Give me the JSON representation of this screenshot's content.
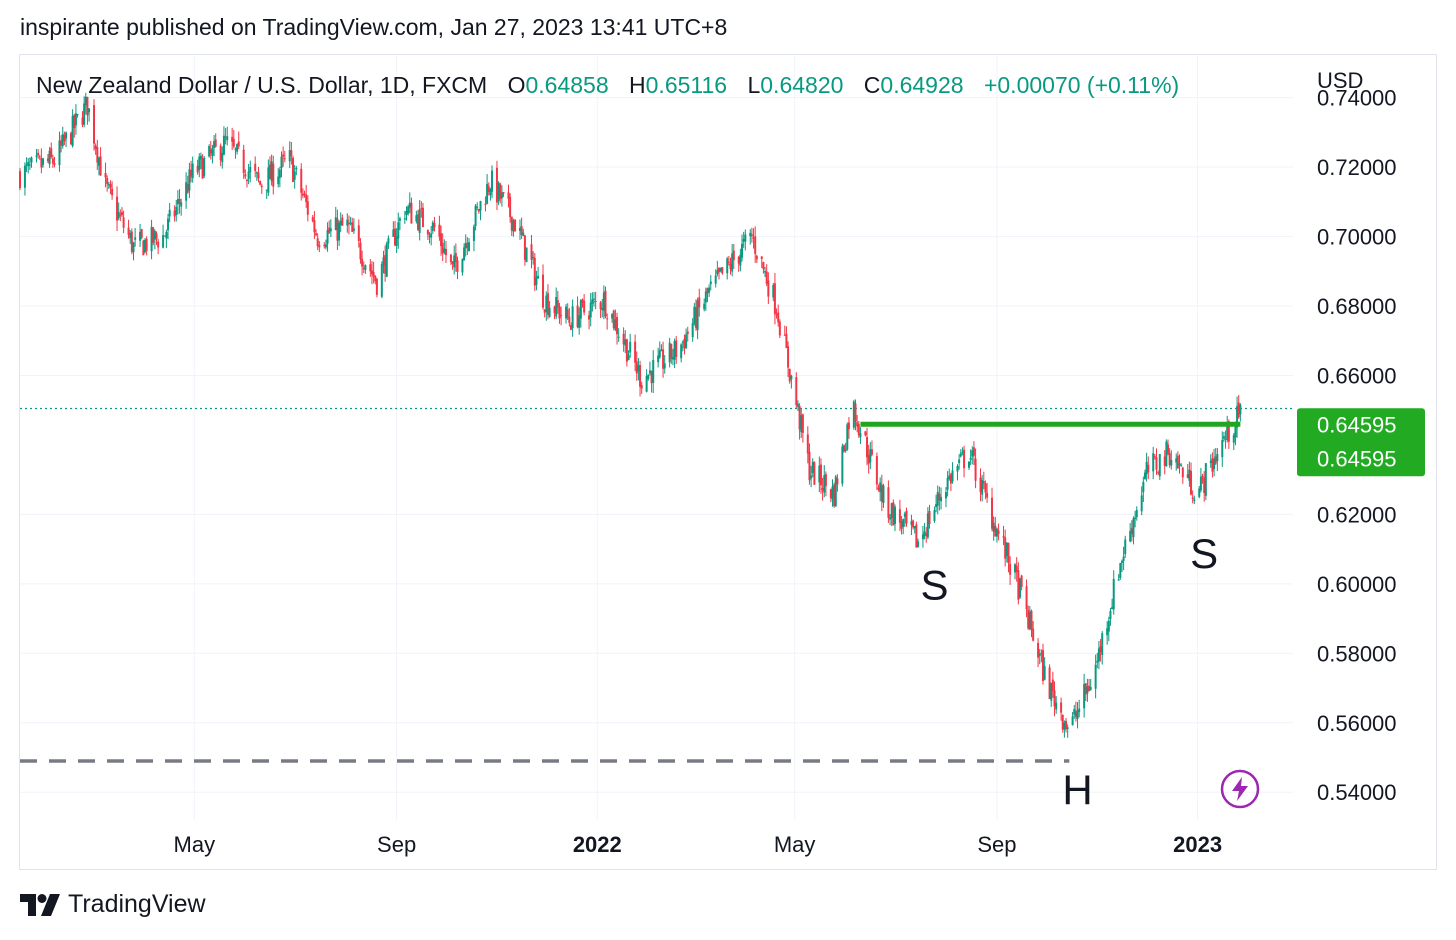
{
  "header": {
    "published": "inspirante published on TradingView.com, Jan 27, 2023 13:41 UTC+8"
  },
  "legend": {
    "symbol": "New Zealand Dollar / U.S. Dollar, 1D, FXCM",
    "o_label": "O",
    "o_value": "0.64858",
    "h_label": "H",
    "h_value": "0.65116",
    "l_label": "L",
    "l_value": "0.64820",
    "c_label": "C",
    "c_value": "0.64928",
    "change": "+0.00070 (+0.11%)"
  },
  "footer": {
    "logo_text": "TradingView"
  },
  "icons": {
    "logo": "tradingview-logo-icon",
    "boost": "lightning-icon"
  },
  "colors": {
    "up": "#089981",
    "down": "#f23645",
    "resistance": "#1fa51f",
    "support": "#787b86",
    "price_line": "#089981",
    "price_tag": "#22ab22",
    "boost": "#9c27b0"
  },
  "chart_data": {
    "type": "candlestick",
    "currency": "USD",
    "ylim": [
      0.532,
      0.752
    ],
    "y_ticks": [
      "0.74000",
      "0.72000",
      "0.70000",
      "0.68000",
      "0.66000",
      "0.62000",
      "0.60000",
      "0.58000",
      "0.56000",
      "0.54000"
    ],
    "y_tick_values": [
      0.74,
      0.72,
      0.7,
      0.68,
      0.66,
      0.62,
      0.6,
      0.58,
      0.56,
      0.54
    ],
    "x_range": [
      "2021-01-15",
      "2023-02-28"
    ],
    "x_ticks": [
      {
        "label": "May",
        "date": "2021-05-01",
        "bold": false
      },
      {
        "label": "Sep",
        "date": "2021-09-01",
        "bold": false
      },
      {
        "label": "2022",
        "date": "2022-01-01",
        "bold": true
      },
      {
        "label": "May",
        "date": "2022-05-01",
        "bold": false
      },
      {
        "label": "Sep",
        "date": "2022-09-01",
        "bold": false
      },
      {
        "label": "2023",
        "date": "2023-01-01",
        "bold": true
      }
    ],
    "price_path": [
      [
        "2021-01-15",
        0.718
      ],
      [
        "2021-02-05",
        0.722
      ],
      [
        "2021-02-25",
        0.738
      ],
      [
        "2021-03-08",
        0.714
      ],
      [
        "2021-03-25",
        0.697
      ],
      [
        "2021-04-12",
        0.7
      ],
      [
        "2021-04-30",
        0.718
      ],
      [
        "2021-05-20",
        0.727
      ],
      [
        "2021-06-10",
        0.715
      ],
      [
        "2021-06-28",
        0.722
      ],
      [
        "2021-07-15",
        0.7
      ],
      [
        "2021-08-02",
        0.703
      ],
      [
        "2021-08-20",
        0.687
      ],
      [
        "2021-09-06",
        0.708
      ],
      [
        "2021-09-25",
        0.702
      ],
      [
        "2021-10-05",
        0.69
      ],
      [
        "2021-10-28",
        0.716
      ],
      [
        "2021-11-12",
        0.704
      ],
      [
        "2021-11-30",
        0.682
      ],
      [
        "2021-12-15",
        0.676
      ],
      [
        "2022-01-05",
        0.682
      ],
      [
        "2022-01-28",
        0.659
      ],
      [
        "2022-02-20",
        0.668
      ],
      [
        "2022-03-10",
        0.684
      ],
      [
        "2022-04-05",
        0.7
      ],
      [
        "2022-04-20",
        0.68
      ],
      [
        "2022-05-10",
        0.633
      ],
      [
        "2022-05-25",
        0.626
      ],
      [
        "2022-06-05",
        0.652
      ],
      [
        "2022-06-25",
        0.623
      ],
      [
        "2022-07-15",
        0.612
      ],
      [
        "2022-08-01",
        0.629
      ],
      [
        "2022-08-15",
        0.638
      ],
      [
        "2022-08-30",
        0.618
      ],
      [
        "2022-09-15",
        0.598
      ],
      [
        "2022-10-01",
        0.572
      ],
      [
        "2022-10-15",
        0.558
      ],
      [
        "2022-10-30",
        0.574
      ],
      [
        "2022-11-15",
        0.606
      ],
      [
        "2022-12-01",
        0.632
      ],
      [
        "2022-12-15",
        0.638
      ],
      [
        "2023-01-01",
        0.626
      ],
      [
        "2023-01-15",
        0.64
      ],
      [
        "2023-01-27",
        0.649
      ]
    ],
    "resistance_line": {
      "value": 0.64595,
      "from": "2022-06-10",
      "to": "2023-01-27"
    },
    "support_line": {
      "value": 0.549,
      "from": "2021-01-15",
      "to": "2022-10-15"
    },
    "current_price_line": {
      "value": 0.6505
    },
    "price_tags": [
      "0.64595",
      "0.64595"
    ],
    "pattern_labels": [
      {
        "text": "S",
        "date": "2022-07-25",
        "value": 0.5955
      },
      {
        "text": "H",
        "date": "2022-10-20",
        "value": 0.5365
      },
      {
        "text": "S",
        "date": "2023-01-05",
        "value": 0.6045
      }
    ]
  }
}
